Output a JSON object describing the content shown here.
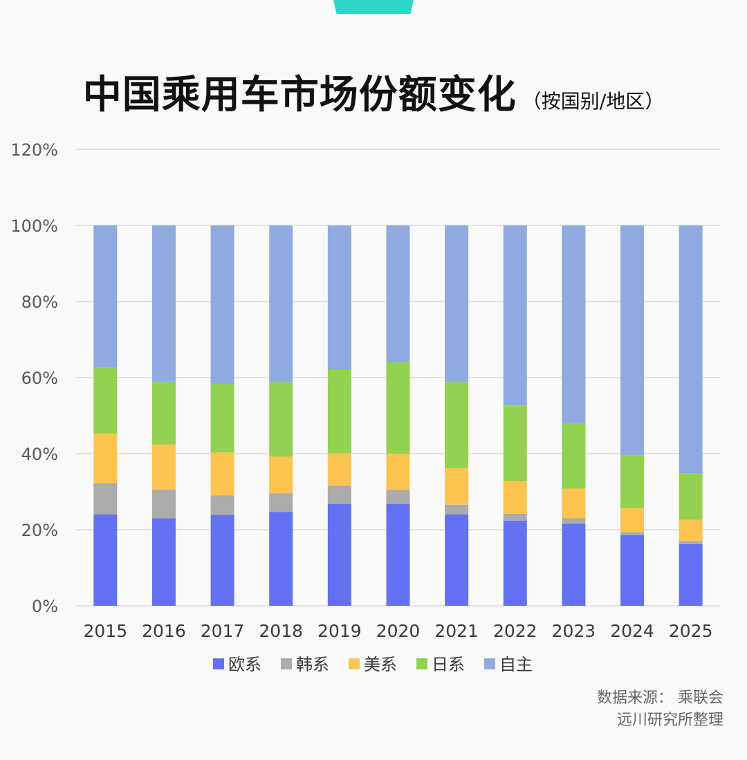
{
  "header": {
    "title": "中国乘用车市场份额变化",
    "subtitle": "（按国别/地区）"
  },
  "source": {
    "line1": "数据来源：  乘联会",
    "line2": "远川研究所整理"
  },
  "colors": {
    "tab": "#2fd4c8",
    "grid": "#d9d9d9",
    "axis_text": "#595959"
  },
  "chart_data": {
    "type": "bar",
    "stacked": true,
    "categories": [
      "2015",
      "2016",
      "2017",
      "2018",
      "2019",
      "2020",
      "2021",
      "2022",
      "2023",
      "2024",
      "2025"
    ],
    "ylim": [
      0,
      120
    ],
    "yticks": [
      "0%",
      "20%",
      "40%",
      "60%",
      "80%",
      "100%",
      "120%"
    ],
    "grid": true,
    "legend_position": "bottom",
    "series": [
      {
        "name": "欧系",
        "color": "#6272f2",
        "values": [
          24.0,
          23.0,
          23.9,
          24.7,
          26.8,
          26.8,
          24.0,
          22.4,
          21.6,
          18.6,
          16.2
        ]
      },
      {
        "name": "韩系",
        "color": "#ababab",
        "values": [
          8.2,
          7.6,
          5.1,
          4.9,
          4.8,
          3.7,
          2.6,
          1.8,
          1.4,
          0.8,
          0.8
        ]
      },
      {
        "name": "美系",
        "color": "#fec44f",
        "values": [
          13.1,
          11.8,
          11.3,
          9.6,
          8.5,
          9.5,
          9.6,
          8.5,
          7.8,
          6.3,
          5.6
        ]
      },
      {
        "name": "日系",
        "color": "#93d250",
        "values": [
          17.3,
          16.7,
          18.0,
          19.6,
          21.9,
          24.1,
          22.6,
          20.0,
          17.1,
          13.8,
          12.3
        ]
      },
      {
        "name": "自主",
        "color": "#8faadf",
        "values": [
          37.4,
          40.9,
          41.7,
          41.2,
          38.0,
          35.9,
          41.2,
          47.3,
          52.1,
          60.5,
          65.1
        ]
      }
    ]
  }
}
